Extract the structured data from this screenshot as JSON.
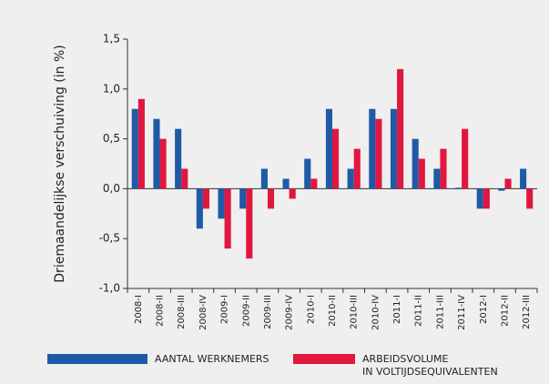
{
  "chart_data": {
    "type": "bar",
    "y_label": "Driemaandelijkse verschuiving (in %)",
    "categories": [
      "2008-I",
      "2008-II",
      "2008-III",
      "2008-IV",
      "2009-I",
      "2009-II",
      "2009-III",
      "2009-IV",
      "2010-I",
      "2010-II",
      "2010-III",
      "2010-IV",
      "2011-I",
      "2011-II",
      "2011-III",
      "2011-IV",
      "2012-I",
      "2012-II",
      "2012-III"
    ],
    "series": [
      {
        "name": "AANTAL WERKNEMERS",
        "color": "#1f5aa6",
        "values": [
          0.8,
          0.7,
          0.6,
          -0.4,
          -0.3,
          -0.2,
          0.2,
          0.1,
          0.3,
          0.8,
          0.2,
          0.8,
          0.8,
          0.5,
          0.2,
          0.01,
          -0.2,
          -0.02,
          0.2
        ]
      },
      {
        "name": "ARBEIDSVOLUME\nIN VOLTIJDSEQUIVALENTEN",
        "color": "#e0173f",
        "values": [
          0.9,
          0.5,
          0.2,
          -0.2,
          -0.6,
          -0.7,
          -0.2,
          -0.1,
          0.1,
          0.6,
          0.4,
          0.7,
          1.2,
          0.3,
          0.4,
          0.6,
          -0.2,
          0.1,
          -0.2
        ]
      }
    ],
    "ylim": [
      -1.0,
      1.5
    ],
    "yticks": [
      {
        "value": -1.0,
        "label": "-1,0"
      },
      {
        "value": -0.5,
        "label": "-0,5"
      },
      {
        "value": 0,
        "label": "0,0"
      },
      {
        "value": 0.5,
        "label": "0,5"
      },
      {
        "value": 1.0,
        "label": "1,0"
      },
      {
        "value": 1.5,
        "label": "1,5"
      }
    ],
    "grid": false
  }
}
